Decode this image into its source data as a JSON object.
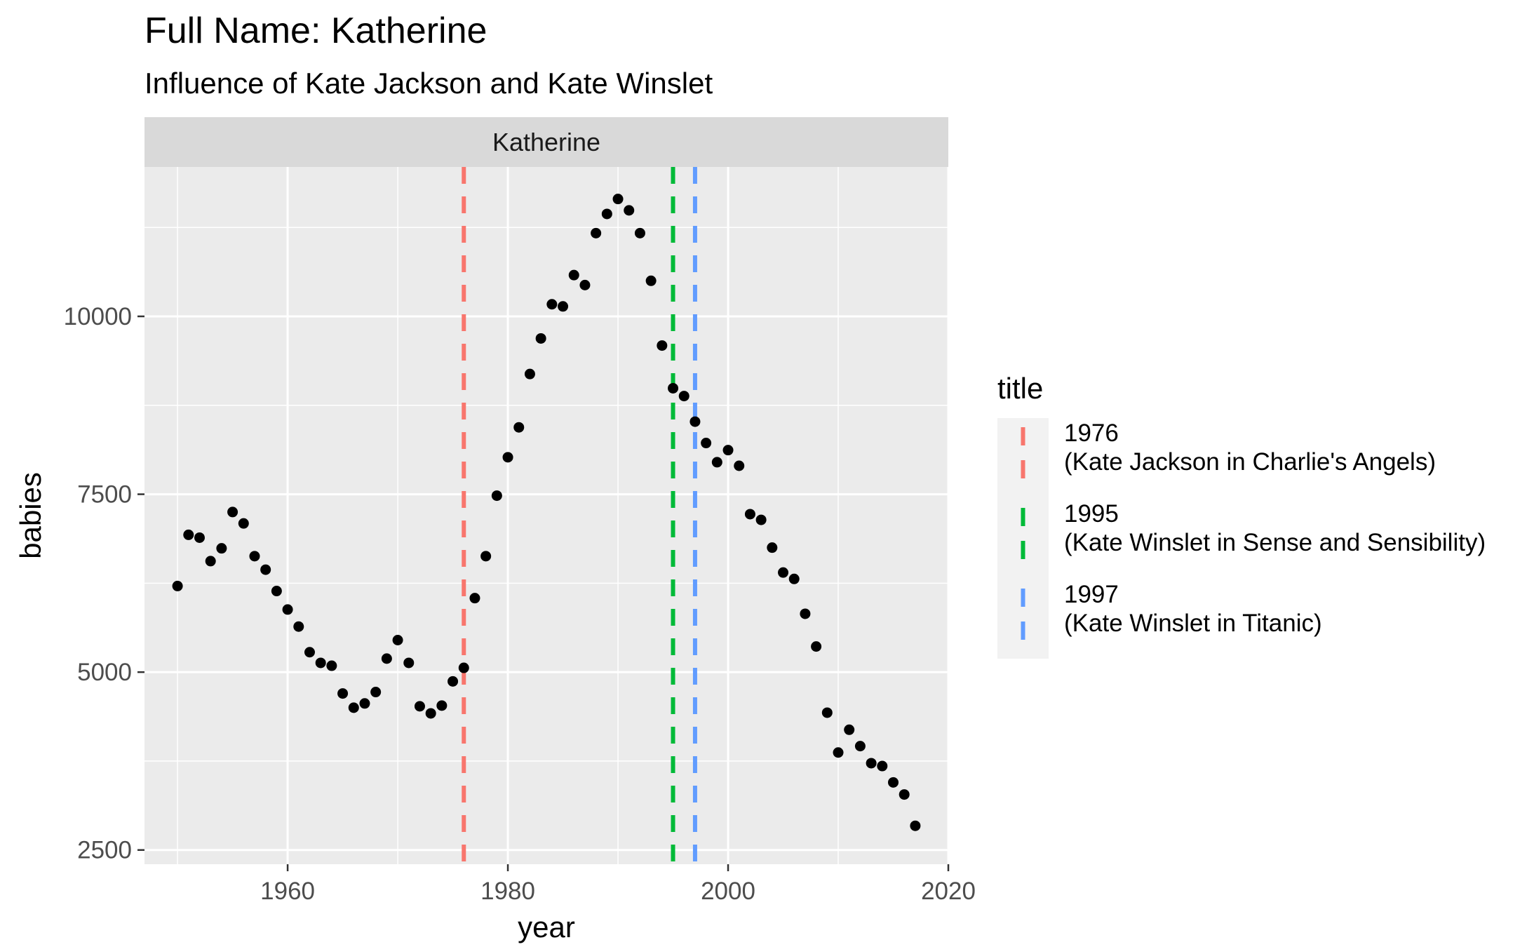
{
  "chart_data": {
    "type": "scatter",
    "title": "Full Name: Katherine",
    "subtitle": "Influence of Kate Jackson and Kate Winslet",
    "facet_label": "Katherine",
    "xlabel": "year",
    "ylabel": "babies",
    "xlim": [
      1947,
      2020
    ],
    "ylim": [
      2300,
      12100
    ],
    "x_ticks": [
      1960,
      1980,
      2000,
      2020
    ],
    "y_ticks": [
      2500,
      5000,
      7500,
      10000
    ],
    "x_tick_labels": [
      "1960",
      "1980",
      "2000",
      "2020"
    ],
    "y_tick_labels": [
      "2500",
      "5000",
      "7500",
      "10000"
    ],
    "grid": true,
    "point_color": "#000000",
    "panel_background": "#ebebeb",
    "strip_background": "#d9d9d9",
    "points": [
      {
        "x": 1950,
        "y": 6210
      },
      {
        "x": 1951,
        "y": 6930
      },
      {
        "x": 1952,
        "y": 6890
      },
      {
        "x": 1953,
        "y": 6560
      },
      {
        "x": 1954,
        "y": 6740
      },
      {
        "x": 1955,
        "y": 7250
      },
      {
        "x": 1956,
        "y": 7090
      },
      {
        "x": 1957,
        "y": 6630
      },
      {
        "x": 1958,
        "y": 6440
      },
      {
        "x": 1959,
        "y": 6140
      },
      {
        "x": 1960,
        "y": 5880
      },
      {
        "x": 1961,
        "y": 5640
      },
      {
        "x": 1962,
        "y": 5280
      },
      {
        "x": 1963,
        "y": 5130
      },
      {
        "x": 1964,
        "y": 5090
      },
      {
        "x": 1965,
        "y": 4700
      },
      {
        "x": 1966,
        "y": 4500
      },
      {
        "x": 1967,
        "y": 4560
      },
      {
        "x": 1968,
        "y": 4720
      },
      {
        "x": 1969,
        "y": 5190
      },
      {
        "x": 1970,
        "y": 5450
      },
      {
        "x": 1971,
        "y": 5130
      },
      {
        "x": 1972,
        "y": 4520
      },
      {
        "x": 1973,
        "y": 4420
      },
      {
        "x": 1974,
        "y": 4530
      },
      {
        "x": 1975,
        "y": 4870
      },
      {
        "x": 1976,
        "y": 5060
      },
      {
        "x": 1977,
        "y": 6040
      },
      {
        "x": 1978,
        "y": 6630
      },
      {
        "x": 1979,
        "y": 7480
      },
      {
        "x": 1980,
        "y": 8020
      },
      {
        "x": 1981,
        "y": 8440
      },
      {
        "x": 1982,
        "y": 9190
      },
      {
        "x": 1983,
        "y": 9690
      },
      {
        "x": 1984,
        "y": 10170
      },
      {
        "x": 1985,
        "y": 10140
      },
      {
        "x": 1986,
        "y": 10580
      },
      {
        "x": 1987,
        "y": 10440
      },
      {
        "x": 1988,
        "y": 11170
      },
      {
        "x": 1989,
        "y": 11440
      },
      {
        "x": 1990,
        "y": 11650
      },
      {
        "x": 1991,
        "y": 11490
      },
      {
        "x": 1992,
        "y": 11170
      },
      {
        "x": 1993,
        "y": 10500
      },
      {
        "x": 1994,
        "y": 9590
      },
      {
        "x": 1995,
        "y": 8990
      },
      {
        "x": 1996,
        "y": 8880
      },
      {
        "x": 1997,
        "y": 8520
      },
      {
        "x": 1998,
        "y": 8220
      },
      {
        "x": 1999,
        "y": 7950
      },
      {
        "x": 2000,
        "y": 8120
      },
      {
        "x": 2001,
        "y": 7900
      },
      {
        "x": 2002,
        "y": 7220
      },
      {
        "x": 2003,
        "y": 7140
      },
      {
        "x": 2004,
        "y": 6750
      },
      {
        "x": 2005,
        "y": 6400
      },
      {
        "x": 2006,
        "y": 6310
      },
      {
        "x": 2007,
        "y": 5820
      },
      {
        "x": 2008,
        "y": 5360
      },
      {
        "x": 2009,
        "y": 4430
      },
      {
        "x": 2010,
        "y": 3870
      },
      {
        "x": 2011,
        "y": 4190
      },
      {
        "x": 2012,
        "y": 3960
      },
      {
        "x": 2013,
        "y": 3720
      },
      {
        "x": 2014,
        "y": 3680
      },
      {
        "x": 2015,
        "y": 3450
      },
      {
        "x": 2016,
        "y": 3280
      },
      {
        "x": 2017,
        "y": 2840
      }
    ],
    "vlines": [
      {
        "x": 1976,
        "color": "#f8766d",
        "label_year": "1976",
        "label_desc": " (Kate Jackson in Charlie's Angels)"
      },
      {
        "x": 1995,
        "color": "#00ba38",
        "label_year": "1995",
        "label_desc": " (Kate Winslet in Sense and Sensibility)"
      },
      {
        "x": 1997,
        "color": "#619cff",
        "label_year": "1997",
        "label_desc": " (Kate Winslet in Titanic)"
      }
    ],
    "legend": {
      "title": "title",
      "placement": "right"
    }
  }
}
